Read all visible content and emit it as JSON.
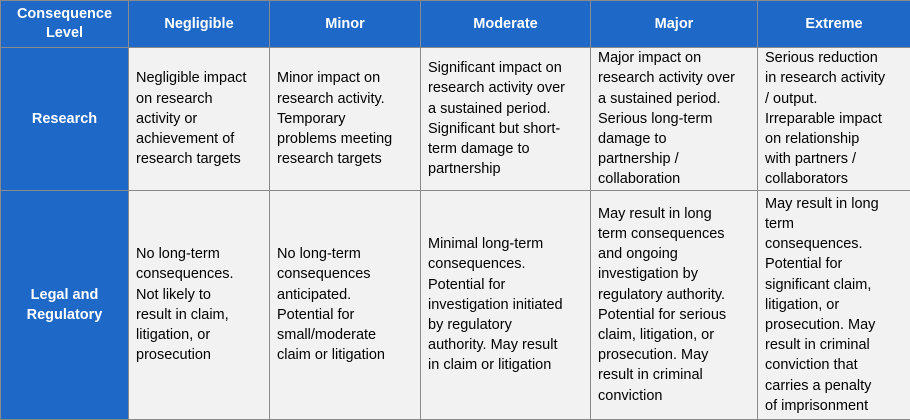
{
  "table": {
    "header_level": "Consequence Level",
    "columns": [
      "Negligible",
      "Minor",
      "Moderate",
      "Major",
      "Extreme"
    ],
    "rows": [
      {
        "label": "Research",
        "cells": [
          "Negligible impact\non research\nactivity or\nachievement of\nresearch targets",
          "Minor impact on\nresearch activity.\nTemporary\nproblems meeting\nresearch targets",
          "Significant impact on\nresearch activity over\na sustained period.\nSignificant but short-\nterm damage to\npartnership",
          "Major impact on\nresearch activity over\na sustained period.\nSerious long-term\ndamage to\npartnership /\ncollaboration",
          "Serious reduction\nin research activity\n/ output.\nIrreparable impact\non relationship\nwith partners /\ncollaborators"
        ]
      },
      {
        "label": "Legal and\nRegulatory",
        "cells": [
          "No long-term\nconsequences.\nNot likely to\nresult in claim,\nlitigation, or\nprosecution",
          "No long-term\nconsequences\nanticipated.\nPotential for\nsmall/moderate\nclaim or litigation",
          "Minimal long-term\nconsequences.\nPotential for\ninvestigation initiated\nby regulatory\nauthority. May result\nin claim or litigation",
          "May result in long\nterm consequences\nand ongoing\ninvestigation by\nregulatory authority.\nPotential for serious\nclaim, litigation, or\nprosecution. May\nresult in criminal\nconviction",
          "May result in long\nterm\nconsequences.\nPotential for\nsignificant claim,\nlitigation, or\nprosecution. May\nresult in criminal\nconviction that\ncarries a penalty\nof imprisonment"
        ]
      }
    ]
  },
  "colors": {
    "header_bg": "#1e68c8",
    "header_text": "#ffffff",
    "cell_bg": "#f2f2f2",
    "border": "#8a8a8a"
  }
}
